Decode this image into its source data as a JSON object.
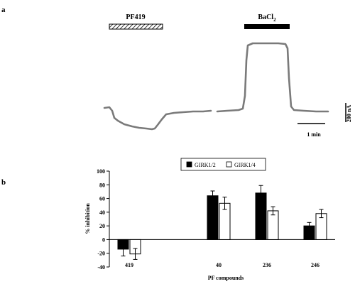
{
  "panel_a": {
    "label": "a",
    "bars": [
      {
        "label": "PF419",
        "style": "hatched"
      },
      {
        "label": "BaCl",
        "subscript": "2",
        "style": "solid"
      }
    ],
    "scale_y_label": "200 nA",
    "scale_x_label": "1 min",
    "trace_color": "#7a7a7a"
  },
  "panel_b": {
    "label": "b"
  },
  "chart_data": {
    "type": "bar",
    "xlabel": "PF compounds",
    "ylabel": "% inhibition",
    "ylim": [
      -40,
      100
    ],
    "yticks": [
      -40,
      -20,
      0,
      20,
      40,
      60,
      80,
      100
    ],
    "categories": [
      "419",
      "40",
      "236",
      "246"
    ],
    "legend_position": "top-center",
    "grid": false,
    "series": [
      {
        "name": "GIRK1/2",
        "color": "#000000",
        "values": [
          -14,
          64,
          68,
          20
        ],
        "errors": [
          10,
          7,
          11,
          5
        ]
      },
      {
        "name": "GIRK1/4",
        "color": "#ffffff",
        "values": [
          -21,
          53,
          42,
          38
        ],
        "errors": [
          8,
          9,
          6,
          6
        ]
      }
    ]
  }
}
